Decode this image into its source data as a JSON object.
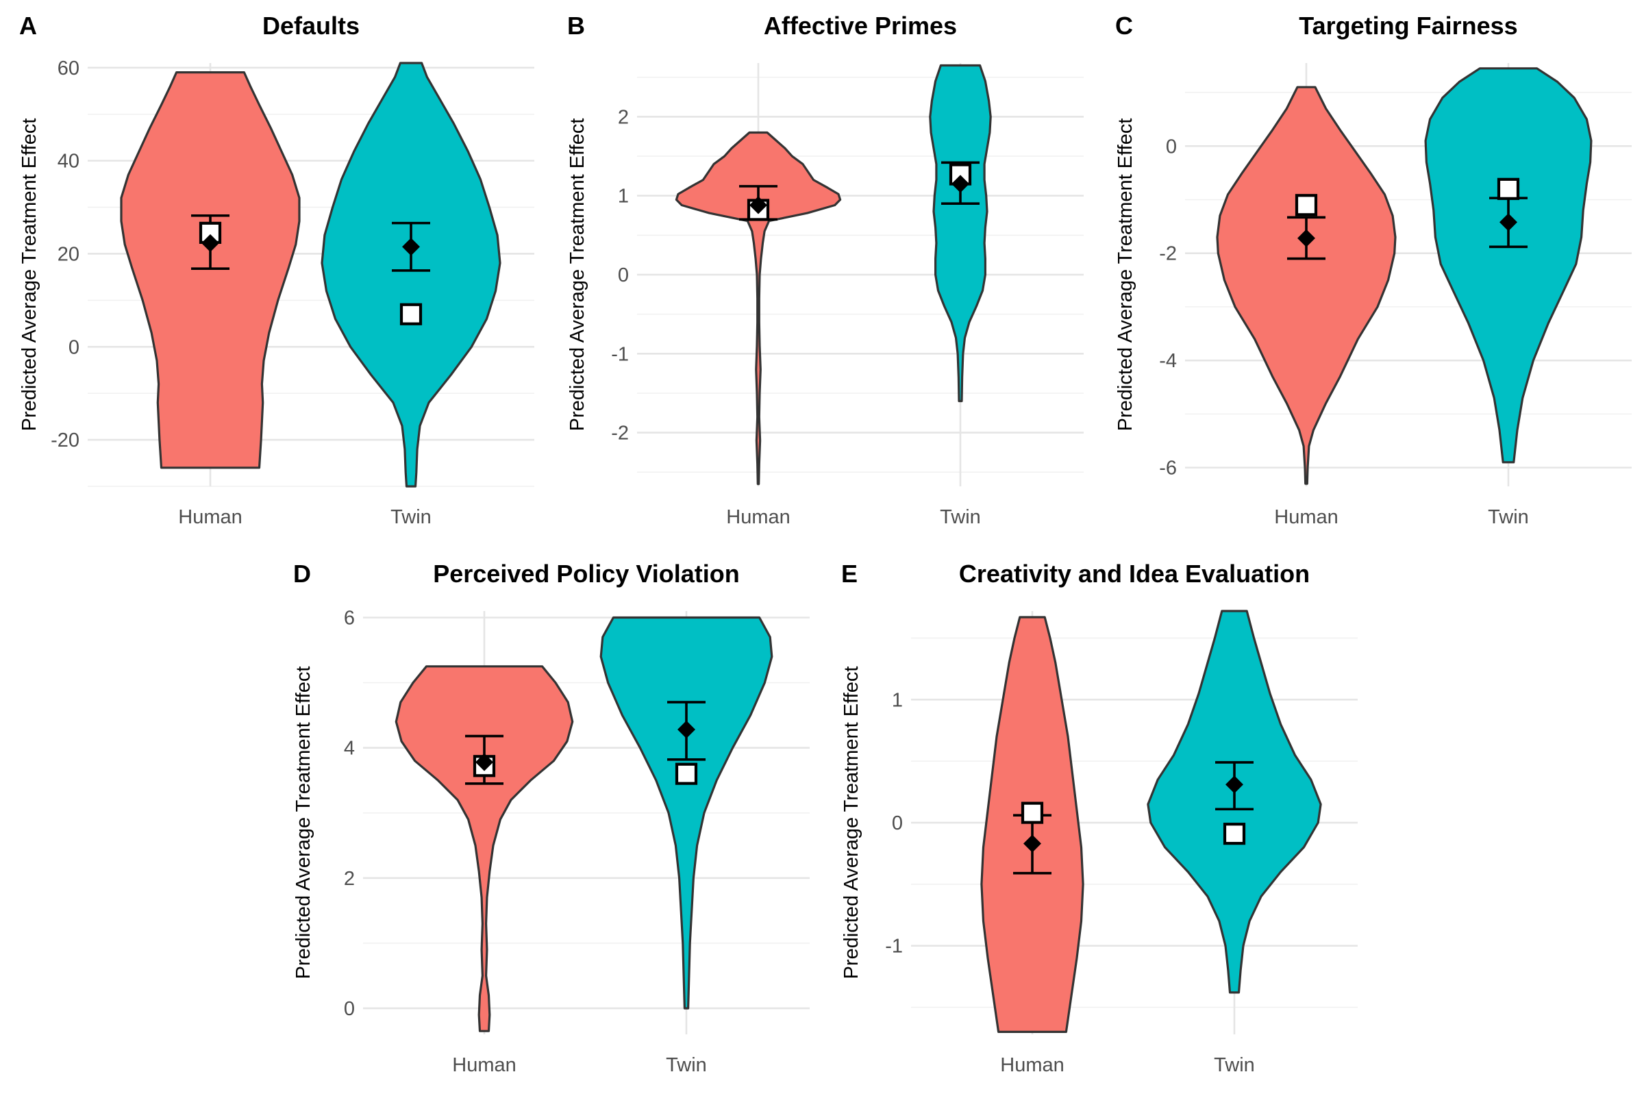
{
  "figure": {
    "y_axis_label": "Predicted Average Treatment Effect"
  },
  "chart_data": [
    {
      "panel": "A",
      "type": "violin",
      "title": "Defaults",
      "categories": [
        "Human",
        "Twin"
      ],
      "ylabel": "Predicted Average Treatment Effect",
      "ylim": [
        -30,
        61
      ],
      "yticks": [
        -20,
        0,
        20,
        40,
        60
      ],
      "tick_labels": [
        "-20",
        "0",
        "20",
        "40",
        "60"
      ],
      "minor_ticks": [
        -30,
        -10,
        10,
        30,
        50
      ],
      "series": [
        {
          "name": "Human",
          "color": "#F8766D",
          "mean": 24.5,
          "predicted": 22.3,
          "ci": [
            16.8,
            28.2
          ],
          "density": [
            [
              -26,
              0.55
            ],
            [
              -20,
              0.57
            ],
            [
              -12,
              0.59
            ],
            [
              -8,
              0.58
            ],
            [
              -3,
              0.6
            ],
            [
              3,
              0.66
            ],
            [
              10,
              0.76
            ],
            [
              17,
              0.88
            ],
            [
              22,
              0.96
            ],
            [
              27,
              1.0
            ],
            [
              32,
              1.0
            ],
            [
              37,
              0.92
            ],
            [
              42,
              0.8
            ],
            [
              47,
              0.68
            ],
            [
              52,
              0.55
            ],
            [
              56,
              0.45
            ],
            [
              59,
              0.38
            ]
          ]
        },
        {
          "name": "Twin",
          "color": "#00BFC4",
          "mean": 7.0,
          "predicted": 21.5,
          "ci": [
            16.4,
            26.6
          ],
          "density": [
            [
              -30,
              0.05
            ],
            [
              -27,
              0.06
            ],
            [
              -22,
              0.07
            ],
            [
              -17,
              0.1
            ],
            [
              -12,
              0.2
            ],
            [
              -6,
              0.45
            ],
            [
              0,
              0.68
            ],
            [
              6,
              0.85
            ],
            [
              12,
              0.95
            ],
            [
              18,
              1.0
            ],
            [
              24,
              0.97
            ],
            [
              30,
              0.88
            ],
            [
              36,
              0.78
            ],
            [
              42,
              0.64
            ],
            [
              48,
              0.48
            ],
            [
              54,
              0.3
            ],
            [
              58,
              0.18
            ],
            [
              61,
              0.12
            ]
          ]
        }
      ]
    },
    {
      "panel": "B",
      "type": "violin",
      "title": "Affective Primes",
      "categories": [
        "Human",
        "Twin"
      ],
      "ylabel": "Predicted Average Treatment Effect",
      "ylim": [
        -2.68,
        2.68
      ],
      "yticks": [
        -2,
        -1,
        0,
        1,
        2
      ],
      "tick_labels": [
        "-2",
        "-1",
        "0",
        "1",
        "2"
      ],
      "minor_ticks": [
        -2.5,
        -1.5,
        -0.5,
        0.5,
        1.5,
        2.5
      ],
      "series": [
        {
          "name": "Human",
          "color": "#F8766D",
          "mean": 0.82,
          "predicted": 0.88,
          "ci": [
            0.7,
            1.12
          ],
          "density": [
            [
              -2.65,
              0.005
            ],
            [
              -2.4,
              0.01
            ],
            [
              -2.1,
              0.02
            ],
            [
              -1.8,
              0.01
            ],
            [
              -1.5,
              0.015
            ],
            [
              -1.2,
              0.025
            ],
            [
              -0.9,
              0.015
            ],
            [
              -0.6,
              0.01
            ],
            [
              -0.3,
              0.01
            ],
            [
              0.0,
              0.015
            ],
            [
              0.2,
              0.03
            ],
            [
              0.4,
              0.05
            ],
            [
              0.55,
              0.07
            ],
            [
              0.68,
              0.12
            ],
            [
              0.78,
              0.55
            ],
            [
              0.88,
              0.86
            ],
            [
              0.95,
              0.92
            ],
            [
              1.02,
              0.9
            ],
            [
              1.1,
              0.78
            ],
            [
              1.2,
              0.62
            ],
            [
              1.3,
              0.56
            ],
            [
              1.4,
              0.5
            ],
            [
              1.5,
              0.38
            ],
            [
              1.6,
              0.3
            ],
            [
              1.7,
              0.2
            ],
            [
              1.8,
              0.1
            ]
          ]
        },
        {
          "name": "Twin",
          "color": "#00BFC4",
          "mean": 1.27,
          "predicted": 1.15,
          "ci": [
            0.9,
            1.42
          ],
          "density": [
            [
              -1.6,
              0.015
            ],
            [
              -1.3,
              0.02
            ],
            [
              -1.0,
              0.03
            ],
            [
              -0.8,
              0.05
            ],
            [
              -0.6,
              0.1
            ],
            [
              -0.4,
              0.18
            ],
            [
              -0.2,
              0.25
            ],
            [
              0.0,
              0.28
            ],
            [
              0.2,
              0.28
            ],
            [
              0.4,
              0.27
            ],
            [
              0.6,
              0.28
            ],
            [
              0.8,
              0.3
            ],
            [
              1.0,
              0.29
            ],
            [
              1.2,
              0.27
            ],
            [
              1.4,
              0.27
            ],
            [
              1.6,
              0.3
            ],
            [
              1.8,
              0.33
            ],
            [
              2.0,
              0.34
            ],
            [
              2.2,
              0.32
            ],
            [
              2.45,
              0.28
            ],
            [
              2.65,
              0.22
            ]
          ]
        }
      ]
    },
    {
      "panel": "C",
      "type": "violin",
      "title": "Targeting Fairness",
      "categories": [
        "Human",
        "Twin"
      ],
      "ylabel": "Predicted Average Treatment Effect",
      "ylim": [
        -6.35,
        1.55
      ],
      "yticks": [
        -6,
        -4,
        -2,
        0
      ],
      "tick_labels": [
        "-6",
        "-4",
        "-2",
        "0"
      ],
      "minor_ticks": [
        -5,
        -3,
        -1,
        1
      ],
      "series": [
        {
          "name": "Human",
          "color": "#F8766D",
          "mean": -1.1,
          "predicted": -1.72,
          "ci": [
            -2.1,
            -1.33
          ],
          "density": [
            [
              -6.3,
              0.01
            ],
            [
              -6.0,
              0.015
            ],
            [
              -5.6,
              0.03
            ],
            [
              -5.3,
              0.08
            ],
            [
              -4.8,
              0.22
            ],
            [
              -4.3,
              0.38
            ],
            [
              -3.6,
              0.58
            ],
            [
              -3.0,
              0.8
            ],
            [
              -2.5,
              0.92
            ],
            [
              -2.0,
              0.99
            ],
            [
              -1.7,
              1.0
            ],
            [
              -1.3,
              0.97
            ],
            [
              -0.9,
              0.88
            ],
            [
              -0.5,
              0.72
            ],
            [
              -0.1,
              0.55
            ],
            [
              0.3,
              0.38
            ],
            [
              0.7,
              0.22
            ],
            [
              1.1,
              0.1
            ]
          ]
        },
        {
          "name": "Twin",
          "color": "#00BFC4",
          "mean": -0.8,
          "predicted": -1.42,
          "ci": [
            -1.88,
            -0.97
          ],
          "density": [
            [
              -5.9,
              0.06
            ],
            [
              -5.3,
              0.1
            ],
            [
              -4.7,
              0.16
            ],
            [
              -4.0,
              0.28
            ],
            [
              -3.3,
              0.45
            ],
            [
              -2.7,
              0.62
            ],
            [
              -2.2,
              0.76
            ],
            [
              -1.7,
              0.82
            ],
            [
              -1.2,
              0.84
            ],
            [
              -0.7,
              0.88
            ],
            [
              -0.3,
              0.92
            ],
            [
              0.1,
              0.93
            ],
            [
              0.5,
              0.88
            ],
            [
              0.9,
              0.74
            ],
            [
              1.2,
              0.55
            ],
            [
              1.45,
              0.32
            ]
          ]
        }
      ]
    },
    {
      "panel": "D",
      "type": "violin",
      "title": "Perceived Policy Violation",
      "categories": [
        "Human",
        "Twin"
      ],
      "ylabel": "Predicted Average Treatment Effect",
      "ylim": [
        -0.4,
        6.1
      ],
      "yticks": [
        0,
        2,
        4,
        6
      ],
      "tick_labels": [
        "0",
        "2",
        "4",
        "6"
      ],
      "minor_ticks": [
        1,
        3,
        5
      ],
      "series": [
        {
          "name": "Human",
          "color": "#F8766D",
          "mean": 3.72,
          "predicted": 3.78,
          "ci": [
            3.45,
            4.18
          ],
          "density": [
            [
              -0.35,
              0.05
            ],
            [
              -0.1,
              0.06
            ],
            [
              0.2,
              0.05
            ],
            [
              0.5,
              0.02
            ],
            [
              0.9,
              0.03
            ],
            [
              1.3,
              0.02
            ],
            [
              1.7,
              0.03
            ],
            [
              2.1,
              0.06
            ],
            [
              2.5,
              0.1
            ],
            [
              2.9,
              0.18
            ],
            [
              3.2,
              0.3
            ],
            [
              3.5,
              0.52
            ],
            [
              3.8,
              0.78
            ],
            [
              4.1,
              0.93
            ],
            [
              4.4,
              0.99
            ],
            [
              4.7,
              0.94
            ],
            [
              5.0,
              0.8
            ],
            [
              5.25,
              0.65
            ]
          ]
        },
        {
          "name": "Twin",
          "color": "#00BFC4",
          "mean": 3.6,
          "predicted": 4.28,
          "ci": [
            3.82,
            4.7
          ],
          "density": [
            [
              0.0,
              0.02
            ],
            [
              0.5,
              0.03
            ],
            [
              1.0,
              0.04
            ],
            [
              1.5,
              0.06
            ],
            [
              2.0,
              0.08
            ],
            [
              2.5,
              0.12
            ],
            [
              3.0,
              0.2
            ],
            [
              3.5,
              0.34
            ],
            [
              4.0,
              0.52
            ],
            [
              4.5,
              0.72
            ],
            [
              5.0,
              0.88
            ],
            [
              5.4,
              0.96
            ],
            [
              5.7,
              0.94
            ],
            [
              6.0,
              0.82
            ]
          ]
        }
      ]
    },
    {
      "panel": "E",
      "type": "violin",
      "title": "Creativity and Idea Evaluation",
      "categories": [
        "Human",
        "Twin"
      ],
      "ylabel": "Predicted Average Treatment Effect",
      "ylim": [
        -1.72,
        1.72
      ],
      "yticks": [
        -1,
        0,
        1
      ],
      "tick_labels": [
        "-1",
        "0",
        "1"
      ],
      "minor_ticks": [
        -1.5,
        -0.5,
        0.5,
        1.5
      ],
      "series": [
        {
          "name": "Human",
          "color": "#F8766D",
          "mean": 0.08,
          "predicted": -0.17,
          "ci": [
            -0.41,
            0.06
          ],
          "density": [
            [
              -1.7,
              0.38
            ],
            [
              -1.4,
              0.44
            ],
            [
              -1.1,
              0.5
            ],
            [
              -0.8,
              0.55
            ],
            [
              -0.5,
              0.57
            ],
            [
              -0.2,
              0.55
            ],
            [
              0.1,
              0.5
            ],
            [
              0.4,
              0.45
            ],
            [
              0.7,
              0.4
            ],
            [
              1.0,
              0.33
            ],
            [
              1.3,
              0.26
            ],
            [
              1.5,
              0.2
            ],
            [
              1.67,
              0.14
            ]
          ]
        },
        {
          "name": "Twin",
          "color": "#00BFC4",
          "mean": -0.09,
          "predicted": 0.31,
          "ci": [
            0.11,
            0.49
          ],
          "density": [
            [
              -1.38,
              0.05
            ],
            [
              -1.2,
              0.07
            ],
            [
              -1.0,
              0.1
            ],
            [
              -0.8,
              0.17
            ],
            [
              -0.6,
              0.3
            ],
            [
              -0.4,
              0.52
            ],
            [
              -0.2,
              0.78
            ],
            [
              0.0,
              0.94
            ],
            [
              0.15,
              0.97
            ],
            [
              0.35,
              0.86
            ],
            [
              0.55,
              0.68
            ],
            [
              0.8,
              0.52
            ],
            [
              1.05,
              0.4
            ],
            [
              1.3,
              0.3
            ],
            [
              1.5,
              0.22
            ],
            [
              1.72,
              0.14
            ]
          ]
        }
      ]
    }
  ]
}
